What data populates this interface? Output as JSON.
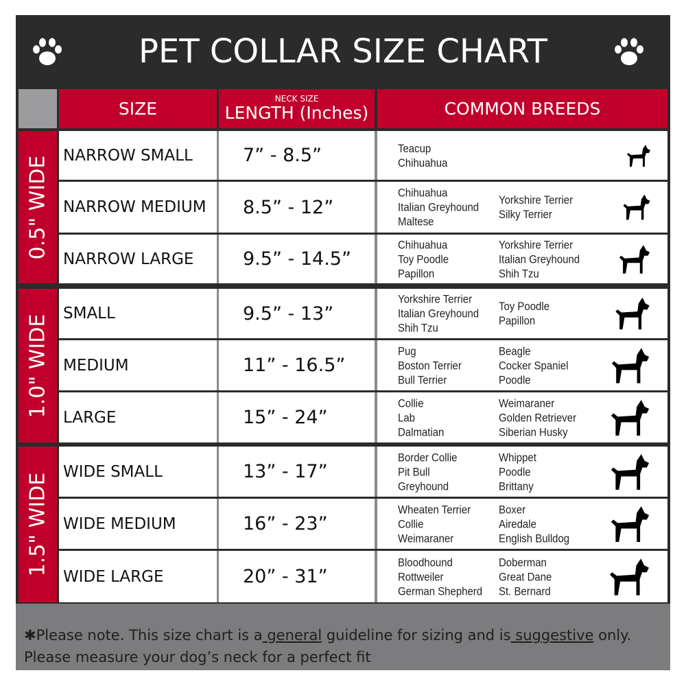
{
  "title": "PET COLLAR SIZE CHART",
  "icons": {
    "left": "paw-icon",
    "right": "paw-icon"
  },
  "colors": {
    "header_red": "#c0002a",
    "dark": "#2b2b2b",
    "footer_gray": "#7c7c7e"
  },
  "headers": {
    "size": "SIZE",
    "length_small": "NECK SIZE",
    "length": "LENGTH (Inches)",
    "breeds": "COMMON BREEDS"
  },
  "groups": [
    {
      "label": "0.5\" WIDE"
    },
    {
      "label": "1.0\" WIDE"
    },
    {
      "label": "1.5\" WIDE"
    }
  ],
  "rows": [
    {
      "size": "NARROW SMALL",
      "length": "7” - 8.5”",
      "col1": "Teacup\nChihuahua",
      "col2": "",
      "icon": "yorkie-silhouette-icon"
    },
    {
      "size": "NARROW MEDIUM",
      "length": "8.5” - 12”",
      "col1": "Chihuahua\nItalian Greyhound\nMaltese",
      "col2": "Yorkshire Terrier\nSilky Terrier",
      "icon": "chihuahua-silhouette-icon"
    },
    {
      "size": "NARROW LARGE",
      "length": "9.5” - 14.5”",
      "col1": "Chihuahua\nToy Poodle\nPapillon",
      "col2": "Yorkshire Terrier\nItalian Greyhound\nShih Tzu",
      "icon": "pomeranian-silhouette-icon"
    },
    {
      "size": "SMALL",
      "length": "9.5” - 13”",
      "col1": "Yorkshire Terrier\nItalian Greyhound\nShih Tzu",
      "col2": "Toy Poodle\nPapillon",
      "icon": "pomeranian-silhouette-icon"
    },
    {
      "size": "MEDIUM",
      "length": "11” - 16.5”",
      "col1": "Pug\nBoston Terrier\nBull Terrier",
      "col2": "Beagle\nCocker Spaniel\nPoodle",
      "icon": "dachshund-silhouette-icon"
    },
    {
      "size": "LARGE",
      "length": "15” - 24”",
      "col1": "Collie\nLab\nDalmatian",
      "col2": "Weimaraner\nGolden Retriever\nSiberian Husky",
      "icon": "shepherd-silhouette-icon"
    },
    {
      "size": "WIDE SMALL",
      "length": "13” - 17”",
      "col1": "Border Collie\nPit Bull\nGreyhound",
      "col2": "Whippet\nPoodle\nBrittany",
      "icon": "bulldog-silhouette-icon"
    },
    {
      "size": "WIDE MEDIUM",
      "length": "16” - 23”",
      "col1": "Wheaten Terrier\nCollie\nWeimaraner",
      "col2": "Boxer\nAiredale\nEnglish Bulldog",
      "icon": "pitbull-silhouette-icon"
    },
    {
      "size": "WIDE LARGE",
      "length": "20” - 31”",
      "col1": "Bloodhound\nRottweiler\nGerman Shepherd",
      "col2": "Doberman\nGreat Dane\nSt. Bernard",
      "icon": "doberman-silhouette-icon"
    }
  ],
  "footer": {
    "prefix": "✱Please note. This size chart is a",
    "u1": " general",
    "mid": " guideline for sizing and is",
    "u2": " suggestive",
    "suffix": " only.",
    "line2": "Please measure your dog’s neck for a perfect fit"
  }
}
